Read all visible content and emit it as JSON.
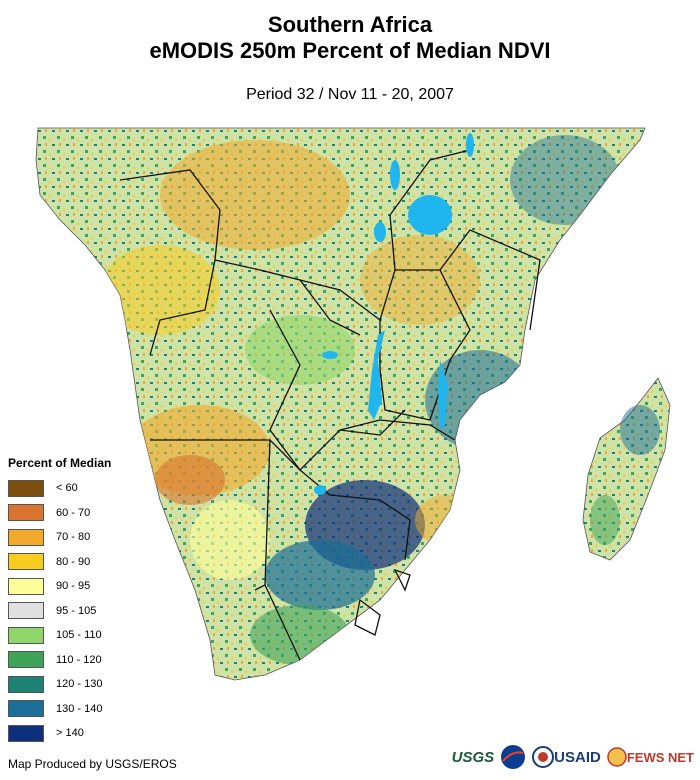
{
  "title": {
    "line1": "Southern Africa",
    "line2": "eMODIS 250m Percent of Median NDVI"
  },
  "period": "Period 32 / Nov 11 - 20, 2007",
  "legend": {
    "title": "Percent of Median",
    "items": [
      {
        "label": "< 60",
        "color": "#7a4f0e"
      },
      {
        "label": "60 - 70",
        "color": "#d9752e"
      },
      {
        "label": "70 - 80",
        "color": "#f0a92a"
      },
      {
        "label": "80 - 90",
        "color": "#f7cc1f"
      },
      {
        "label": "90 - 95",
        "color": "#ffff99"
      },
      {
        "label": "95 - 105",
        "color": "#e0e0e0"
      },
      {
        "label": "105 - 110",
        "color": "#90d56a"
      },
      {
        "label": "110 - 120",
        "color": "#3ea45a"
      },
      {
        "label": "120 - 130",
        "color": "#1e8176"
      },
      {
        "label": "130 - 140",
        "color": "#1a6e97"
      },
      {
        "label": "> 140",
        "color": "#0e2f7c"
      }
    ]
  },
  "credit": "Map Produced by USGS/EROS",
  "logos": {
    "usgs": "USGS",
    "nasa": "NASA",
    "usaid": "USAID",
    "fews": "FEWS NET"
  },
  "colors": {
    "water": "#1fb6f0",
    "border": "#111111",
    "land_base": "#cfe3a8"
  }
}
